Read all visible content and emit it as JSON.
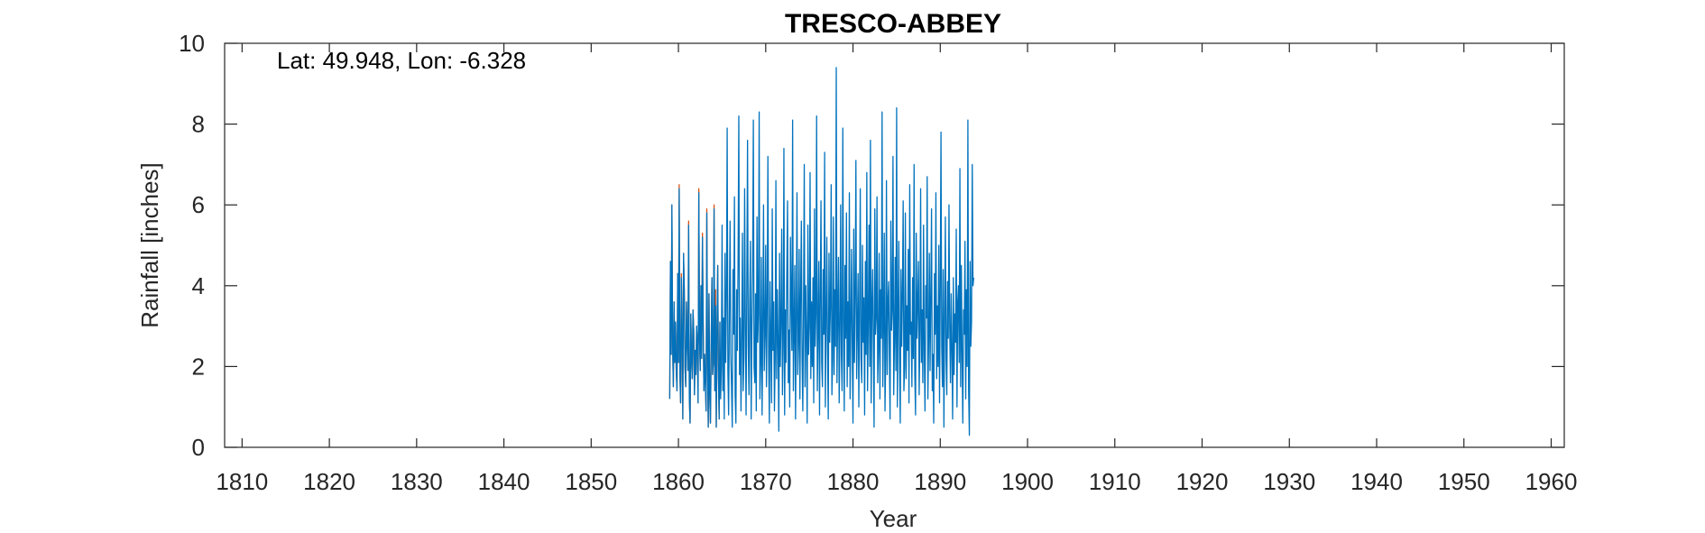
{
  "chart_data": {
    "type": "line",
    "title": "TRESCO-ABBEY",
    "annotation": "Lat: 49.948, Lon: -6.328",
    "xlabel": "Year",
    "ylabel": "Rainfall [inches]",
    "xlim": [
      1808,
      1961.5
    ],
    "ylim": [
      0,
      10
    ],
    "x_ticks": [
      1810,
      1820,
      1830,
      1840,
      1850,
      1860,
      1870,
      1880,
      1890,
      1900,
      1910,
      1920,
      1930,
      1940,
      1950,
      1960
    ],
    "y_ticks": [
      0,
      2,
      4,
      6,
      8,
      10
    ],
    "grid": false,
    "resolution": "monthly",
    "series": [
      {
        "color": "#0072BD",
        "x_start": 1859.0,
        "x_step": 0.083333,
        "values": [
          1.2,
          4.6,
          2.3,
          6.0,
          2.5,
          1.5,
          3.6,
          2.1,
          3.1,
          1.9,
          1.4,
          4.3,
          2.1,
          6.4,
          1.8,
          1.1,
          4.2,
          2.8,
          0.7,
          4.8,
          3.9,
          2.0,
          1.5,
          3.6,
          2.6,
          1.9,
          5.5,
          1.2,
          0.6,
          3.3,
          2.2,
          1.7,
          3.4,
          2.9,
          1.3,
          2.4,
          1.8,
          3.0,
          2.5,
          1.1,
          6.3,
          2.7,
          1.9,
          4.0,
          2.2,
          5.2,
          3.1,
          1.4,
          2.3,
          1.6,
          0.9,
          5.8,
          2.2,
          0.5,
          3.8,
          1.3,
          0.6,
          2.5,
          4.2,
          1.8,
          2.1,
          5.9,
          1.4,
          3.5,
          0.5,
          2.9,
          4.5,
          1.7,
          0.7,
          3.1,
          1.2,
          2.0,
          5.5,
          1.4,
          3.2,
          0.7,
          4.8,
          2.1,
          3.7,
          7.9,
          1.9,
          0.8,
          3.4,
          5.6,
          2.3,
          1.5,
          0.5,
          4.4,
          2.8,
          6.2,
          1.3,
          0.6,
          3.9,
          2.4,
          4.6,
          8.2,
          1.8,
          3.2,
          0.9,
          2.7,
          5.3,
          1.4,
          2.2,
          6.4,
          3.1,
          0.8,
          4.0,
          7.6,
          2.5,
          1.3,
          3.6,
          5.1,
          0.7,
          2.9,
          4.4,
          8.1,
          2.0,
          1.6,
          3.8,
          0.9,
          5.7,
          2.6,
          3.3,
          8.3,
          1.2,
          2.1,
          4.7,
          0.8,
          3.0,
          6.0,
          1.9,
          2.8,
          5.0,
          1.5,
          3.5,
          7.2,
          2.3,
          0.6,
          4.1,
          2.7,
          1.1,
          5.9,
          2.4,
          3.6,
          0.9,
          2.2,
          6.6,
          1.7,
          3.9,
          2.6,
          0.4,
          4.8,
          2.0,
          3.1,
          5.4,
          1.3,
          2.5,
          7.4,
          0.8,
          3.4,
          2.1,
          4.3,
          6.1,
          1.6,
          2.9,
          1.0,
          5.2,
          3.7,
          2.4,
          8.1,
          1.4,
          2.8,
          4.5,
          0.7,
          3.2,
          6.3,
          1.8,
          2.6,
          4.9,
          1.2,
          3.8,
          5.6,
          2.2,
          0.9,
          3.5,
          7.0,
          1.5,
          4.0,
          2.7,
          0.6,
          5.5,
          2.3,
          3.0,
          6.8,
          1.7,
          3.6,
          2.0,
          4.2,
          1.1,
          5.9,
          2.5,
          3.3,
          8.2,
          1.4,
          2.9,
          4.6,
          0.8,
          3.7,
          6.1,
          2.1,
          1.5,
          4.4,
          2.8,
          7.3,
          1.0,
          3.1,
          5.2,
          2.4,
          0.7,
          4.8,
          2.6,
          3.5,
          6.5,
          1.3,
          2.2,
          5.7,
          1.8,
          3.9,
          2.5,
          9.4,
          1.6,
          3.3,
          4.7,
          1.1,
          2.8,
          6.0,
          2.3,
          1.4,
          7.9,
          3.2,
          0.9,
          4.5,
          2.7,
          5.8,
          1.5,
          3.6,
          2.0,
          6.3,
          1.2,
          3.0,
          4.9,
          2.4,
          0.6,
          5.4,
          2.1,
          3.8,
          7.1,
          1.7,
          2.9,
          4.3,
          1.0,
          3.4,
          6.4,
          2.2,
          1.6,
          5.0,
          2.6,
          3.7,
          0.8,
          4.6,
          2.3,
          6.8,
          1.4,
          3.1,
          5.5,
          2.0,
          7.6,
          1.1,
          3.5,
          4.4,
          2.5,
          0.5,
          5.9,
          2.8,
          3.2,
          6.2,
          1.6,
          2.4,
          4.8,
          1.2,
          3.9,
          2.7,
          8.3,
          1.5,
          3.0,
          5.3,
          0.9,
          2.2,
          6.6,
          1.8,
          3.6,
          4.1,
          2.3,
          0.7,
          5.6,
          2.9,
          3.4,
          7.2,
          1.3,
          2.6,
          4.7,
          1.9,
          8.4,
          1.0,
          3.3,
          5.1,
          2.1,
          0.6,
          4.4,
          2.5,
          3.8,
          6.1,
          1.4,
          2.0,
          5.8,
          1.7,
          3.5,
          2.4,
          4.9,
          1.1,
          6.5,
          2.8,
          3.1,
          1.5,
          4.2,
          2.2,
          7.0,
          1.8,
          0.8,
          5.3,
          2.7,
          3.6,
          4.6,
          1.3,
          2.9,
          6.4,
          2.1,
          3.4,
          1.6,
          5.5,
          2.4,
          0.9,
          4.0,
          3.2,
          6.7,
          1.2,
          2.6,
          4.8,
          1.9,
          3.7,
          5.9,
          1.4,
          2.3,
          0.6,
          4.3,
          2.8,
          6.3,
          1.7,
          3.5,
          2.0,
          5.0,
          1.1,
          3.9,
          7.8,
          2.5,
          1.5,
          4.4,
          0.5,
          3.1,
          5.7,
          2.2,
          1.3,
          4.1,
          2.7,
          6.0,
          3.0,
          1.6,
          3.8,
          2.4,
          0.7,
          4.2,
          1.8,
          3.3,
          2.6,
          5.4,
          1.0,
          3.6,
          4.0,
          2.1,
          6.9,
          1.5,
          4.5,
          2.3,
          0.6,
          3.4,
          2.8,
          5.1,
          1.2,
          3.9,
          2.0,
          8.1,
          1.4,
          0.3,
          4.6,
          2.5,
          3.1,
          7.0,
          4.0,
          4.2
        ]
      },
      {
        "color": "#D95319",
        "x_start": 1859.0,
        "x_step": 0.083333,
        "values": [
          1.2,
          4.6,
          2.3,
          6.0,
          2.5,
          1.5,
          3.6,
          2.1,
          3.1,
          1.9,
          1.4,
          4.3,
          2.1,
          6.5,
          1.8,
          1.1,
          4.3,
          2.8,
          0.7,
          4.8,
          3.9,
          2.0,
          1.5,
          3.6,
          2.6,
          1.9,
          5.6,
          1.2,
          0.6,
          3.3,
          2.2,
          1.7,
          3.4,
          2.9,
          1.3,
          2.4,
          1.8,
          3.0,
          2.5,
          1.1,
          6.4,
          2.7,
          1.9,
          4.0,
          2.2,
          5.3,
          3.1,
          1.4,
          2.3,
          1.6,
          0.9,
          5.9,
          2.2,
          0.5,
          3.8,
          1.3,
          0.6,
          2.5,
          4.2,
          1.8,
          2.1,
          6.0,
          1.4,
          3.9,
          0.5,
          2.9,
          4.5,
          1.7,
          0.7,
          3.1
        ]
      }
    ]
  }
}
